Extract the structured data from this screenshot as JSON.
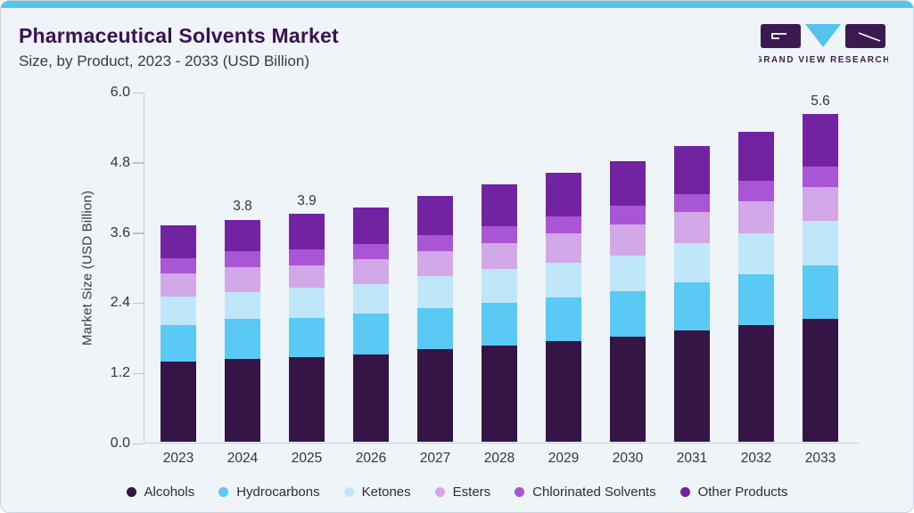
{
  "header": {
    "title": "Pharmaceutical Solvents Market",
    "subtitle": "Size, by Product, 2023 - 2033 (USD Billion)"
  },
  "logo": {
    "text": "GRAND VIEW RESEARCH"
  },
  "colors": {
    "card_bg": "#eff4f9",
    "card_border": "#ccd5df",
    "top_accent": "#56c6ef",
    "title": "#3a1153",
    "subtitle": "#3a3a44",
    "axis_line": "#c3ccd8",
    "tick_text": "#33343c",
    "logo_purple": "#3b1b4f",
    "logo_cyan": "#55c4ec"
  },
  "chart_data": {
    "type": "bar",
    "stacked": true,
    "title": "Pharmaceutical Solvents Market Size, by Product, 2023 - 2033 (USD Billion)",
    "xlabel": "",
    "ylabel": "Market Size (USD Billion)",
    "ylim": [
      0,
      6.0
    ],
    "yticks": [
      "0.0",
      "1.2",
      "2.4",
      "3.6",
      "4.8",
      "6.0"
    ],
    "grid": false,
    "legend_position": "bottom",
    "categories": [
      "2023",
      "2024",
      "2025",
      "2026",
      "2027",
      "2028",
      "2029",
      "2030",
      "2031",
      "2032",
      "2033"
    ],
    "bar_labels": [
      "",
      "3.8",
      "3.9",
      "",
      "",
      "",
      "",
      "",
      "",
      "",
      "5.6"
    ],
    "totals": [
      3.7,
      3.8,
      3.9,
      4.0,
      4.2,
      4.4,
      4.6,
      4.8,
      5.05,
      5.3,
      5.6
    ],
    "series": [
      {
        "name": "Alcohols",
        "color": "#351446",
        "values": [
          1.37,
          1.42,
          1.45,
          1.5,
          1.58,
          1.64,
          1.72,
          1.8,
          1.9,
          2.0,
          2.1
        ]
      },
      {
        "name": "Hydrocarbons",
        "color": "#5ac9f4",
        "values": [
          0.63,
          0.68,
          0.67,
          0.7,
          0.7,
          0.74,
          0.75,
          0.78,
          0.82,
          0.86,
          0.92
        ]
      },
      {
        "name": "Ketones",
        "color": "#bfe7f9",
        "values": [
          0.48,
          0.46,
          0.51,
          0.49,
          0.56,
          0.57,
          0.59,
          0.61,
          0.67,
          0.7,
          0.75
        ]
      },
      {
        "name": "Esters",
        "color": "#d2a8e8",
        "values": [
          0.4,
          0.42,
          0.38,
          0.43,
          0.42,
          0.45,
          0.51,
          0.53,
          0.54,
          0.55,
          0.58
        ]
      },
      {
        "name": "Chlorinated Solvents",
        "color": "#a855d6",
        "values": [
          0.26,
          0.28,
          0.28,
          0.26,
          0.28,
          0.29,
          0.28,
          0.31,
          0.31,
          0.36,
          0.35
        ]
      },
      {
        "name": "Other Products",
        "color": "#7123a2",
        "values": [
          0.56,
          0.54,
          0.61,
          0.62,
          0.66,
          0.71,
          0.75,
          0.77,
          0.81,
          0.83,
          0.9
        ]
      }
    ]
  }
}
